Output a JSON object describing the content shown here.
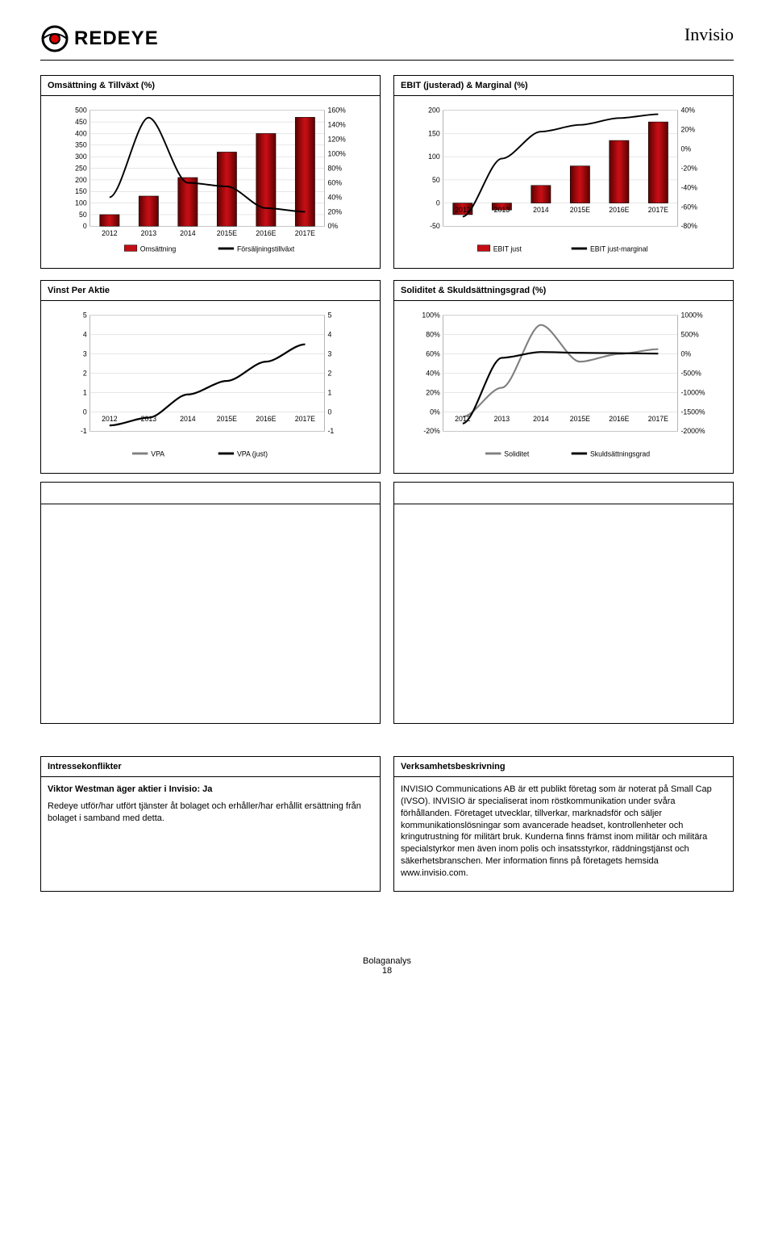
{
  "header": {
    "logo_text": "REDEYE",
    "company": "Invisio"
  },
  "charts": {
    "chart1": {
      "title": "Omsättning & Tillväxt (%)",
      "categories": [
        "2012",
        "2013",
        "2014",
        "2015E",
        "2016E",
        "2017E"
      ],
      "bars": [
        50,
        130,
        210,
        320,
        400,
        470
      ],
      "bar_color": "#c20e14",
      "line": [
        40,
        150,
        60,
        55,
        25,
        20
      ],
      "line_color": "#000000",
      "y1_min": 0,
      "y1_max": 500,
      "y1_step": 50,
      "y2_min": 0,
      "y2_max": 160,
      "y2_step": 20,
      "y2_suffix": "%",
      "legend1": "Omsättning",
      "legend2": "Försäljningstillväxt"
    },
    "chart2": {
      "title": "EBIT (justerad) & Marginal (%)",
      "categories": [
        "2012",
        "2013",
        "2014",
        "2015E",
        "2016E",
        "2017E"
      ],
      "bars": [
        -25,
        -15,
        38,
        80,
        135,
        175
      ],
      "bar_color": "#c20e14",
      "line": [
        -70,
        -10,
        18,
        25,
        32,
        36
      ],
      "line_color": "#000000",
      "y1_min": -50,
      "y1_max": 200,
      "y1_step": 50,
      "y2_min": -80,
      "y2_max": 40,
      "y2_step": 20,
      "y2_suffix": "%",
      "legend1": "EBIT just",
      "legend2": "EBIT just-marginal"
    },
    "chart3": {
      "title": "Vinst Per Aktie",
      "categories": [
        "2012",
        "2013",
        "2014",
        "2015E",
        "2016E",
        "2017E"
      ],
      "line1": [
        -0.7,
        -0.3,
        0.9,
        1.6,
        2.6,
        3.5
      ],
      "line2": [
        -0.7,
        -0.3,
        0.9,
        1.6,
        2.6,
        3.5
      ],
      "line1_color": "#808080",
      "line2_color": "#000000",
      "y1_min": -1,
      "y1_max": 5,
      "y1_step": 1,
      "y2_min": -1,
      "y2_max": 5,
      "y2_step": 1,
      "legend1": "VPA",
      "legend2": "VPA (just)"
    },
    "chart4": {
      "title": "Soliditet & Skuldsättningsgrad (%)",
      "categories": [
        "2012",
        "2013",
        "2014",
        "2015E",
        "2016E",
        "2017E"
      ],
      "line1": [
        -5,
        25,
        90,
        52,
        60,
        65
      ],
      "line2": [
        -1800,
        -100,
        50,
        30,
        20,
        10
      ],
      "line1_color": "#808080",
      "line2_color": "#000000",
      "y1_min": -20,
      "y1_max": 100,
      "y1_step": 20,
      "y1_suffix": "%",
      "y2_min": -2000,
      "y2_max": 1000,
      "y2_step": 500,
      "y2_suffix": "%",
      "legend1": "Soliditet",
      "legend2": "Skuldsättningsgrad"
    }
  },
  "text_blocks": {
    "left": {
      "title": "Intressekonflikter",
      "line1": "Viktor Westman äger aktier i Invisio: Ja",
      "body": "Redeye utför/har utfört tjänster åt bolaget och erhåller/har erhållit ersättning från bolaget i samband med detta."
    },
    "right": {
      "title": "Verksamhetsbeskrivning",
      "body": "INVISIO Communications AB är ett publikt företag som är noterat på Small Cap (IVSO). INVISIO är specialiserat inom röstkommunikation under svåra förhållanden. Företaget utvecklar, tillverkar, marknadsför och säljer kommunikationslösningar som avancerade headset, kontrollenheter och kringutrustning för militärt bruk. Kunderna finns främst inom militär och militära specialstyrkor men även inom polis och insatsstyrkor, räddningstjänst och säkerhetsbranschen. Mer information finns på företagets hemsida www.invisio.com."
    }
  },
  "footer": {
    "line1": "Bolaganalys",
    "line2": "18"
  },
  "style": {
    "grid_color": "#bfbfbf",
    "axis_color": "#000000",
    "font_axis": 9
  }
}
